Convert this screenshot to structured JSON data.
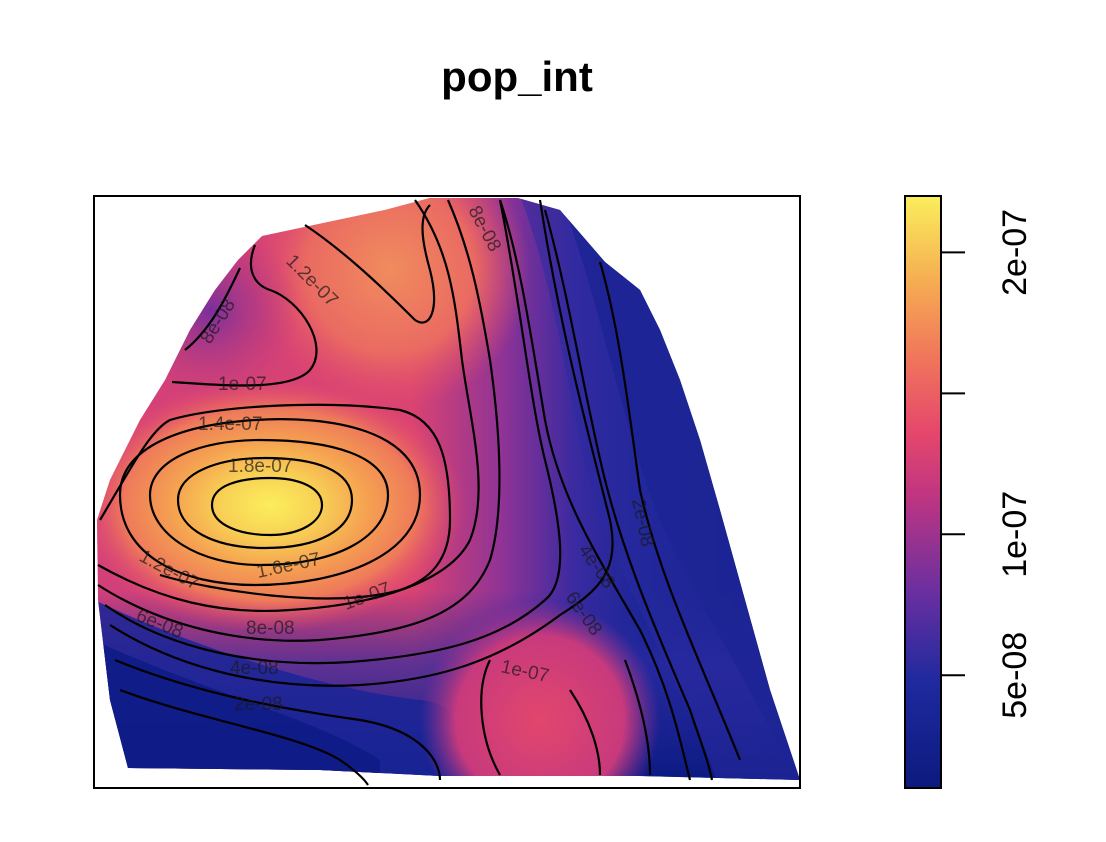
{
  "chart_data": {
    "type": "heatmap",
    "title": "pop_int",
    "legend": {
      "placement": "right",
      "ticks": [
        {
          "value": 5e-08,
          "label": "5e-08"
        },
        {
          "value": 1e-07,
          "label": "1e-07"
        },
        {
          "value": 1.5e-07,
          "label": ""
        },
        {
          "value": 2e-07,
          "label": "2e-07"
        }
      ],
      "range": [
        1e-08,
        2.2e-07
      ]
    },
    "contour_labels": [
      "8e-08",
      "1.2e-07",
      "1e-07",
      "1.4e-07",
      "1.8e-07",
      "1.6e-07",
      "1.2e-07",
      "1e-07",
      "6e-08",
      "8e-08",
      "4e-08",
      "2e-08",
      "1e-07",
      "8e-08",
      "2e-08",
      "4e-08",
      "6e-08"
    ],
    "colors": {
      "low": "#0d1d8a",
      "mid_low": "#6a2fa0",
      "mid": "#e2426e",
      "mid_high": "#f3905d",
      "high": "#fbee5c"
    }
  }
}
